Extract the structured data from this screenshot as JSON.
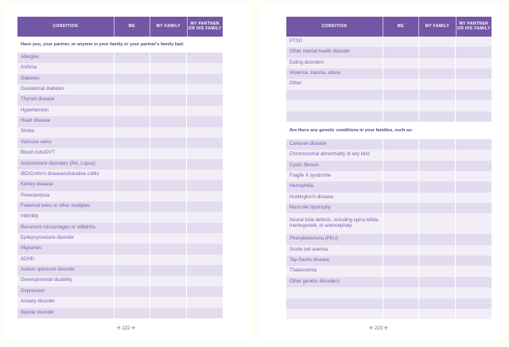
{
  "headers": [
    "CONDITION",
    "ME",
    "MY FAMILY",
    "MY PARTNER OR HIS FAMILY"
  ],
  "left": {
    "section": "Have you, your partner, or anyone in your family or your partner's family had:",
    "rows": [
      "Allergies",
      "Asthma",
      "Diabetes",
      "Gestational diabetes",
      "Thyroid disease",
      "Hypertension",
      "Heart disease",
      "Stroke",
      "Varicose veins",
      "Blood clots/DVT",
      "Autoimmune disorders (RA, Lupus)",
      "IBD/Crohn's disease/ulcerative colitis",
      "Kidney disease",
      "Preeclampsia",
      "Fraternal twins or other multiples",
      "Infertility",
      "Recurrent miscarriages or stillbirths",
      "Epilepsy/seizure disorder",
      "Migraines",
      "ADHD",
      "Autism spectrum disorder",
      "Developmental disability",
      "Depression",
      "Anxiety disorder",
      "Bipolar disorder"
    ],
    "page_number": "222"
  },
  "right": {
    "rows": [
      "PTSD",
      "Other mental health disorder",
      "Eating disorders",
      "Violence, trauma, abuse",
      "Other:",
      "",
      "",
      ""
    ],
    "section": "Are there any genetic conditions in your families, such as:",
    "genetic_rows": [
      "Canavan disease",
      "Chromosomal abnormality of any kind",
      "Cystic fibrosis",
      "Fragile X syndrome",
      "Hemophilia",
      "Huntington's disease",
      "Muscular dystrophy",
      "Neural tube defects, including spina bifida, meningocele, or anencephaly",
      "Phenylketonuria (PKU)",
      "Sickle cell anemia",
      "Tay-Sachs disease",
      "Thalassemia",
      "Other genetic disorders:",
      "",
      "",
      ""
    ],
    "page_number": "223"
  },
  "colors": {
    "header": "#7456a6",
    "row_dark": "#e3dcef",
    "row_light": "#f1eef8",
    "text": "#7a62ac"
  }
}
